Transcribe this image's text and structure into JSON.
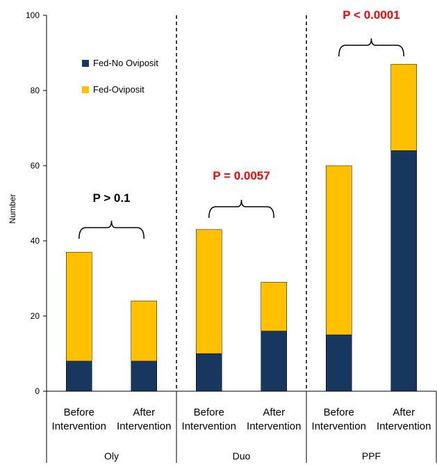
{
  "chart_data": {
    "type": "bar",
    "stacked": true,
    "ylabel": "Number",
    "ylim": [
      0,
      100
    ],
    "yticks": [
      0,
      20,
      40,
      60,
      80,
      100
    ],
    "categories": [
      {
        "label_line1": "Before",
        "label_line2": "Intervention",
        "group": "Oly"
      },
      {
        "label_line1": "After",
        "label_line2": "Intervention",
        "group": "Oly"
      },
      {
        "label_line1": "Before",
        "label_line2": "Intervention",
        "group": "Duo"
      },
      {
        "label_line1": "After",
        "label_line2": "Intervention",
        "group": "Duo"
      },
      {
        "label_line1": "Before",
        "label_line2": "Intervention",
        "group": "PPF"
      },
      {
        "label_line1": "After",
        "label_line2": "Intervention",
        "group": "PPF"
      }
    ],
    "groups": [
      "Oly",
      "Duo",
      "PPF"
    ],
    "series": [
      {
        "name": "Fed-No Oviposit",
        "color": "#17375e",
        "values": [
          8,
          8,
          10,
          16,
          15,
          64
        ]
      },
      {
        "name": "Fed-Oviposit",
        "color": "#ffc000",
        "values": [
          29,
          16,
          33,
          13,
          45,
          23
        ]
      }
    ],
    "legend": "top-left",
    "annotations": [
      {
        "text": "P > 0.1",
        "group": "Oly",
        "color": "#000000"
      },
      {
        "text": "P = 0.0057",
        "group": "Duo",
        "color": "#ff0000"
      },
      {
        "text": "P < 0.0001",
        "group": "PPF",
        "color": "#ff0000"
      }
    ]
  }
}
